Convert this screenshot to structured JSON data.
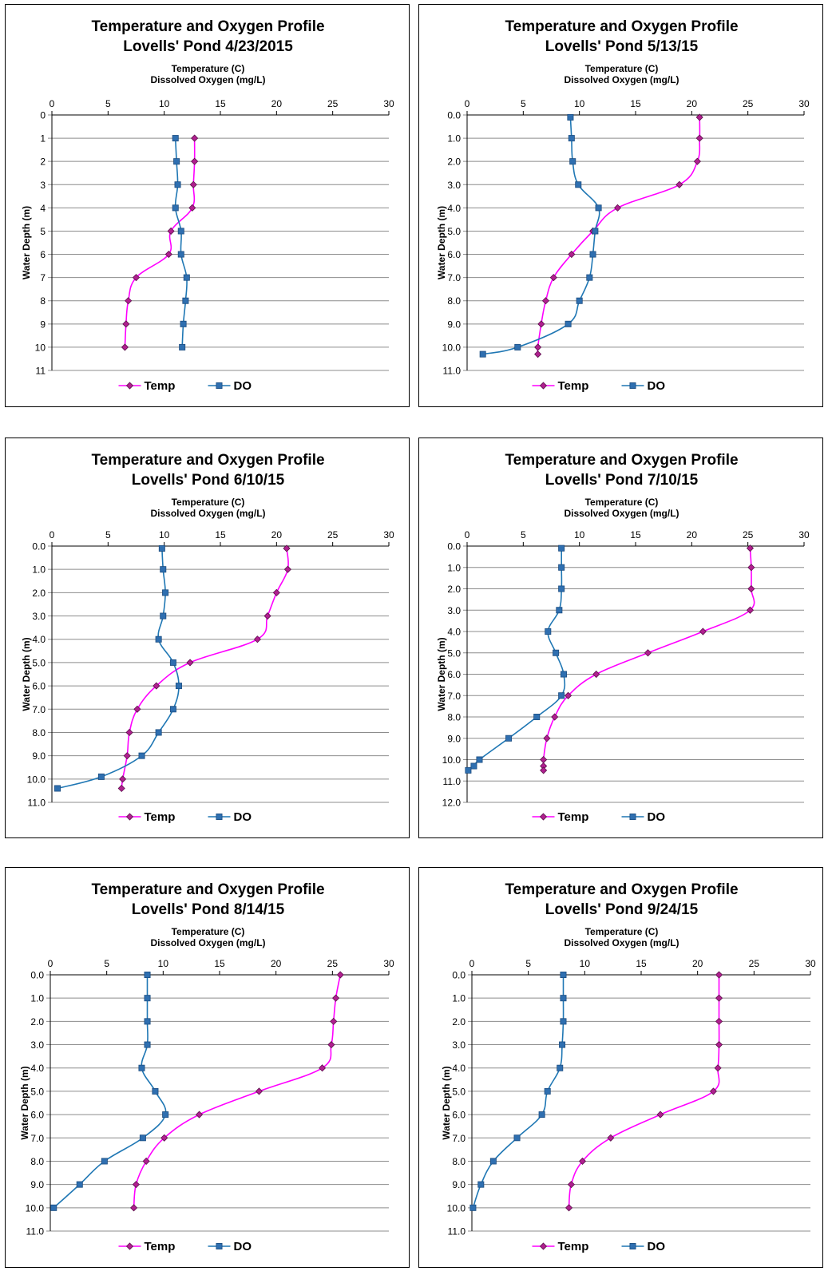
{
  "page": {
    "background": "#ffffff"
  },
  "colors": {
    "temp": "#ff00ff",
    "temp_marker": "#b0208f",
    "do": "#1f77b4",
    "do_marker": "#2f6fb0"
  },
  "chart_data": [
    {
      "type": "line",
      "title_line1": "Temperature and Oxygen Profile",
      "title_line2": "Lovells' Pond 4/23/2015",
      "xlabel_line1": "Temperature (C)",
      "xlabel_line2": "Dissolved Oxygen (mg/L)",
      "ylabel": "Water Depth (m)",
      "xlim": [
        0,
        30
      ],
      "xticks": [
        "0",
        "5",
        "10",
        "15",
        "20",
        "25",
        "30"
      ],
      "ylim": [
        0,
        11
      ],
      "yticks": [
        "0",
        "1",
        "2",
        "3",
        "4",
        "5",
        "6",
        "7",
        "8",
        "9",
        "10",
        "11"
      ],
      "y_axis": "depth, inverted (0 at top)",
      "grid": "horizontal",
      "legend_position": "bottom",
      "series": [
        {
          "name": "Temp",
          "color": "#ff00ff",
          "points": [
            [
              12.7,
              1
            ],
            [
              12.7,
              2
            ],
            [
              12.6,
              3
            ],
            [
              12.5,
              4
            ],
            [
              10.6,
              5
            ],
            [
              10.4,
              6
            ],
            [
              7.5,
              7
            ],
            [
              6.8,
              8
            ],
            [
              6.6,
              9
            ],
            [
              6.5,
              10
            ]
          ]
        },
        {
          "name": "DO",
          "color": "#1f77b4",
          "points": [
            [
              11.0,
              1
            ],
            [
              11.1,
              2
            ],
            [
              11.2,
              3
            ],
            [
              11.0,
              4
            ],
            [
              11.5,
              5
            ],
            [
              11.5,
              6
            ],
            [
              12.0,
              7
            ],
            [
              11.9,
              8
            ],
            [
              11.7,
              9
            ],
            [
              11.6,
              10
            ]
          ]
        }
      ]
    },
    {
      "type": "line",
      "title_line1": "Temperature and Oxygen Profile",
      "title_line2": "Lovells' Pond 5/13/15",
      "xlabel_line1": "Temperature (C)",
      "xlabel_line2": "Dissolved Oxygen (mg/L)",
      "ylabel": "Water Depth (m)",
      "xlim": [
        0,
        30
      ],
      "xticks": [
        "0",
        "5",
        "10",
        "15",
        "20",
        "25",
        "30"
      ],
      "ylim": [
        0,
        11
      ],
      "yticks": [
        "0.0",
        "1.0",
        "2.0",
        "3.0",
        "4.0",
        "5.0",
        "6.0",
        "7.0",
        "8.0",
        "9.0",
        "10.0",
        "11.0"
      ],
      "y_axis": "depth, inverted (0 at top)",
      "grid": "horizontal",
      "legend_position": "bottom",
      "series": [
        {
          "name": "Temp",
          "color": "#ff00ff",
          "points": [
            [
              20.7,
              0.1
            ],
            [
              20.7,
              1
            ],
            [
              20.5,
              2
            ],
            [
              18.9,
              3
            ],
            [
              13.4,
              4
            ],
            [
              11.2,
              5
            ],
            [
              9.3,
              6
            ],
            [
              7.7,
              7
            ],
            [
              7.0,
              8
            ],
            [
              6.6,
              9
            ],
            [
              6.3,
              10
            ],
            [
              6.3,
              10.3
            ]
          ]
        },
        {
          "name": "DO",
          "color": "#1f77b4",
          "points": [
            [
              9.2,
              0.1
            ],
            [
              9.3,
              1
            ],
            [
              9.4,
              2
            ],
            [
              9.9,
              3
            ],
            [
              11.7,
              4
            ],
            [
              11.4,
              5
            ],
            [
              11.2,
              6
            ],
            [
              10.9,
              7
            ],
            [
              10.0,
              8
            ],
            [
              9.0,
              9
            ],
            [
              4.5,
              10
            ],
            [
              1.4,
              10.3
            ]
          ]
        }
      ]
    },
    {
      "type": "line",
      "title_line1": "Temperature and Oxygen Profile",
      "title_line2": "Lovells' Pond 6/10/15",
      "xlabel_line1": "Temperature (C)",
      "xlabel_line2": "Dissolved Oxygen (mg/L)",
      "ylabel": "Water Depth (m)",
      "xlim": [
        0,
        30
      ],
      "xticks": [
        "0",
        "5",
        "10",
        "15",
        "20",
        "25",
        "30"
      ],
      "ylim": [
        0,
        11
      ],
      "yticks": [
        "0.0",
        "1.0",
        "2.0",
        "3.0",
        "4.0",
        "5.0",
        "6.0",
        "7.0",
        "8.0",
        "9.0",
        "10.0",
        "11.0"
      ],
      "y_axis": "depth, inverted (0 at top)",
      "grid": "horizontal",
      "legend_position": "bottom",
      "series": [
        {
          "name": "Temp",
          "color": "#ff00ff",
          "points": [
            [
              20.9,
              0.1
            ],
            [
              21.0,
              1
            ],
            [
              20.0,
              2
            ],
            [
              19.2,
              3
            ],
            [
              18.3,
              4
            ],
            [
              12.3,
              5
            ],
            [
              9.3,
              6
            ],
            [
              7.6,
              7
            ],
            [
              6.9,
              8
            ],
            [
              6.7,
              9
            ],
            [
              6.3,
              10
            ],
            [
              6.2,
              10.4
            ]
          ]
        },
        {
          "name": "DO",
          "color": "#1f77b4",
          "points": [
            [
              9.8,
              0.1
            ],
            [
              9.9,
              1
            ],
            [
              10.1,
              2
            ],
            [
              9.9,
              3
            ],
            [
              9.5,
              4
            ],
            [
              10.8,
              5
            ],
            [
              11.3,
              6
            ],
            [
              10.8,
              7
            ],
            [
              9.5,
              8
            ],
            [
              8.0,
              9
            ],
            [
              4.4,
              9.9
            ],
            [
              0.5,
              10.4
            ]
          ]
        }
      ]
    },
    {
      "type": "line",
      "title_line1": "Temperature and Oxygen Profile",
      "title_line2": "Lovells' Pond 7/10/15",
      "xlabel_line1": "Temperature (C)",
      "xlabel_line2": "Dissolved Oxygen (mg/L)",
      "ylabel": "Water Depth (m)",
      "xlim": [
        0,
        30
      ],
      "xticks": [
        "0",
        "5",
        "10",
        "15",
        "20",
        "25",
        "30"
      ],
      "ylim": [
        0,
        12
      ],
      "yticks": [
        "0.0",
        "1.0",
        "2.0",
        "3.0",
        "4.0",
        "5.0",
        "6.0",
        "7.0",
        "8.0",
        "9.0",
        "10.0",
        "11.0",
        "12.0"
      ],
      "y_axis": "depth, inverted (0 at top)",
      "grid": "horizontal",
      "legend_position": "bottom",
      "series": [
        {
          "name": "Temp",
          "color": "#ff00ff",
          "points": [
            [
              25.2,
              0.1
            ],
            [
              25.3,
              1
            ],
            [
              25.3,
              2
            ],
            [
              25.2,
              3
            ],
            [
              21.0,
              4
            ],
            [
              16.1,
              5
            ],
            [
              11.5,
              6
            ],
            [
              9.0,
              7
            ],
            [
              7.8,
              8
            ],
            [
              7.1,
              9
            ],
            [
              6.8,
              10
            ],
            [
              6.8,
              10.3
            ],
            [
              6.8,
              10.5
            ]
          ]
        },
        {
          "name": "DO",
          "color": "#1f77b4",
          "points": [
            [
              8.4,
              0.1
            ],
            [
              8.4,
              1
            ],
            [
              8.4,
              2
            ],
            [
              8.2,
              3
            ],
            [
              7.2,
              4
            ],
            [
              7.9,
              5
            ],
            [
              8.6,
              6
            ],
            [
              8.4,
              7
            ],
            [
              6.2,
              8
            ],
            [
              3.7,
              9
            ],
            [
              1.1,
              10
            ],
            [
              0.6,
              10.3
            ],
            [
              0.1,
              10.5
            ]
          ]
        }
      ]
    },
    {
      "type": "line",
      "title_line1": "Temperature and Oxygen Profile",
      "title_line2": "Lovells' Pond 8/14/15",
      "xlabel_line1": "Temperature (C)",
      "xlabel_line2": "Dissolved Oxygen (mg/L)",
      "ylabel": "Water Depth (m)",
      "xlim": [
        0,
        30
      ],
      "xticks": [
        "0",
        "5",
        "10",
        "15",
        "20",
        "25",
        "30"
      ],
      "ylim": [
        0,
        11
      ],
      "yticks": [
        "0.0",
        "1.0",
        "2.0",
        "3.0",
        "4.0",
        "5.0",
        "6.0",
        "7.0",
        "8.0",
        "9.0",
        "10.0",
        "11.0"
      ],
      "y_axis": "depth, inverted (0 at top)",
      "grid": "horizontal",
      "legend_position": "bottom",
      "series": [
        {
          "name": "Temp",
          "color": "#ff00ff",
          "points": [
            [
              25.7,
              0
            ],
            [
              25.3,
              1
            ],
            [
              25.1,
              2
            ],
            [
              24.9,
              3
            ],
            [
              24.1,
              4
            ],
            [
              18.5,
              5
            ],
            [
              13.2,
              6
            ],
            [
              10.1,
              7
            ],
            [
              8.5,
              8
            ],
            [
              7.6,
              9
            ],
            [
              7.4,
              10
            ]
          ]
        },
        {
          "name": "DO",
          "color": "#1f77b4",
          "points": [
            [
              8.6,
              0
            ],
            [
              8.6,
              1
            ],
            [
              8.6,
              2
            ],
            [
              8.6,
              3
            ],
            [
              8.1,
              4
            ],
            [
              9.3,
              5
            ],
            [
              10.2,
              6
            ],
            [
              8.2,
              7
            ],
            [
              4.8,
              8
            ],
            [
              2.6,
              9
            ],
            [
              0.3,
              10
            ]
          ]
        }
      ]
    },
    {
      "type": "line",
      "title_line1": "Temperature and Oxygen Profile",
      "title_line2": "Lovells' Pond 9/24/15",
      "xlabel_line1": "Temperature (C)",
      "xlabel_line2": "Dissolved Oxygen (mg/L)",
      "ylabel": "Water Depth (m)",
      "xlim": [
        0,
        30
      ],
      "xticks": [
        "0",
        "5",
        "10",
        "15",
        "20",
        "25",
        "30"
      ],
      "ylim": [
        0,
        11
      ],
      "yticks": [
        "0.0",
        "1.0",
        "2.0",
        "3.0",
        "4.0",
        "5.0",
        "6.0",
        "7.0",
        "8.0",
        "9.0",
        "10.0",
        "11.0"
      ],
      "y_axis": "depth, inverted (0 at top)",
      "grid": "horizontal",
      "legend_position": "bottom",
      "series": [
        {
          "name": "Temp",
          "color": "#ff00ff",
          "points": [
            [
              21.9,
              0
            ],
            [
              21.9,
              1
            ],
            [
              21.9,
              2
            ],
            [
              21.9,
              3
            ],
            [
              21.8,
              4
            ],
            [
              21.4,
              5
            ],
            [
              16.7,
              6
            ],
            [
              12.3,
              7
            ],
            [
              9.8,
              8
            ],
            [
              8.8,
              9
            ],
            [
              8.6,
              10
            ]
          ]
        },
        {
          "name": "DO",
          "color": "#1f77b4",
          "points": [
            [
              8.1,
              0
            ],
            [
              8.1,
              1
            ],
            [
              8.1,
              2
            ],
            [
              8.0,
              3
            ],
            [
              7.8,
              4
            ],
            [
              6.7,
              5
            ],
            [
              6.2,
              6
            ],
            [
              4.0,
              7
            ],
            [
              1.9,
              8
            ],
            [
              0.8,
              9
            ],
            [
              0.1,
              10
            ]
          ]
        }
      ]
    }
  ]
}
